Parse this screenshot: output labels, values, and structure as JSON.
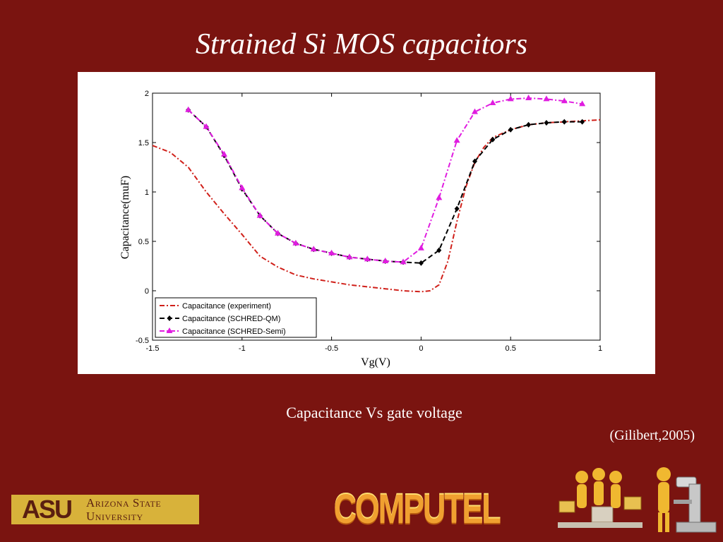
{
  "slide": {
    "title": "Strained Si MOS capacitors",
    "caption": "Capacitance Vs gate voltage",
    "citation": "(Gilibert,2005)"
  },
  "footer": {
    "asu_mark": "ASU",
    "asu_name_line1": "Arizona State",
    "asu_name_line2": "University",
    "computel": "COMPUTEL"
  },
  "colors": {
    "background": "#7a1410",
    "experiment": "#d0201a",
    "qm": "#000000",
    "semi": "#e01ce0"
  },
  "chart_data": {
    "type": "line",
    "xlabel": "Vg(V)",
    "ylabel": "Capacitance(muF)",
    "xlim": [
      -1.5,
      1
    ],
    "ylim": [
      -0.5,
      2
    ],
    "xticks": [
      -1.5,
      -1,
      -0.5,
      0,
      0.5,
      1
    ],
    "xtick_labels": [
      "-1.5",
      "-1",
      "-0.5",
      "0",
      "0.5",
      "1"
    ],
    "yticks": [
      -0.5,
      0,
      0.5,
      1,
      1.5,
      2
    ],
    "ytick_labels": [
      "-0.5",
      "0",
      "0.5",
      "1",
      "1.5",
      "2"
    ],
    "grid": false,
    "legend_position": "bottom-left",
    "series": [
      {
        "name": "Capacitance (experiment)",
        "color": "#d0201a",
        "style": "dash-dot",
        "marker": "none",
        "x": [
          -1.5,
          -1.4,
          -1.3,
          -1.2,
          -1.1,
          -1.0,
          -0.9,
          -0.8,
          -0.7,
          -0.6,
          -0.5,
          -0.4,
          -0.3,
          -0.2,
          -0.1,
          0.0,
          0.05,
          0.1,
          0.15,
          0.2,
          0.25,
          0.3,
          0.35,
          0.4,
          0.5,
          0.6,
          0.7,
          0.8,
          0.9,
          1.0
        ],
        "y": [
          1.47,
          1.4,
          1.25,
          1.0,
          0.78,
          0.57,
          0.35,
          0.24,
          0.16,
          0.12,
          0.09,
          0.06,
          0.04,
          0.02,
          0.0,
          -0.01,
          0.0,
          0.06,
          0.3,
          0.7,
          1.05,
          1.3,
          1.45,
          1.55,
          1.63,
          1.68,
          1.7,
          1.71,
          1.72,
          1.73
        ]
      },
      {
        "name": "Capacitance (SCHRED-QM)",
        "color": "#000000",
        "style": "dashed",
        "marker": "diamond",
        "x": [
          -1.3,
          -1.2,
          -1.1,
          -1.0,
          -0.9,
          -0.8,
          -0.7,
          -0.6,
          -0.5,
          -0.4,
          -0.3,
          -0.2,
          -0.1,
          0.0,
          0.1,
          0.2,
          0.3,
          0.4,
          0.5,
          0.6,
          0.7,
          0.8,
          0.9
        ],
        "y": [
          1.83,
          1.66,
          1.37,
          1.03,
          0.76,
          0.58,
          0.48,
          0.42,
          0.38,
          0.34,
          0.32,
          0.3,
          0.29,
          0.28,
          0.41,
          0.83,
          1.31,
          1.53,
          1.63,
          1.68,
          1.7,
          1.71,
          1.71
        ]
      },
      {
        "name": "Capacitance (SCHRED-Semi)",
        "color": "#e01ce0",
        "style": "dash-dot",
        "marker": "triangle",
        "x": [
          -1.3,
          -1.2,
          -1.1,
          -1.0,
          -0.9,
          -0.8,
          -0.7,
          -0.6,
          -0.5,
          -0.4,
          -0.3,
          -0.2,
          -0.1,
          0.0,
          0.1,
          0.2,
          0.3,
          0.4,
          0.5,
          0.6,
          0.7,
          0.8,
          0.9
        ],
        "y": [
          1.83,
          1.66,
          1.38,
          1.04,
          0.76,
          0.58,
          0.48,
          0.42,
          0.38,
          0.34,
          0.32,
          0.3,
          0.29,
          0.43,
          0.94,
          1.52,
          1.81,
          1.9,
          1.94,
          1.95,
          1.94,
          1.92,
          1.89
        ]
      }
    ]
  }
}
